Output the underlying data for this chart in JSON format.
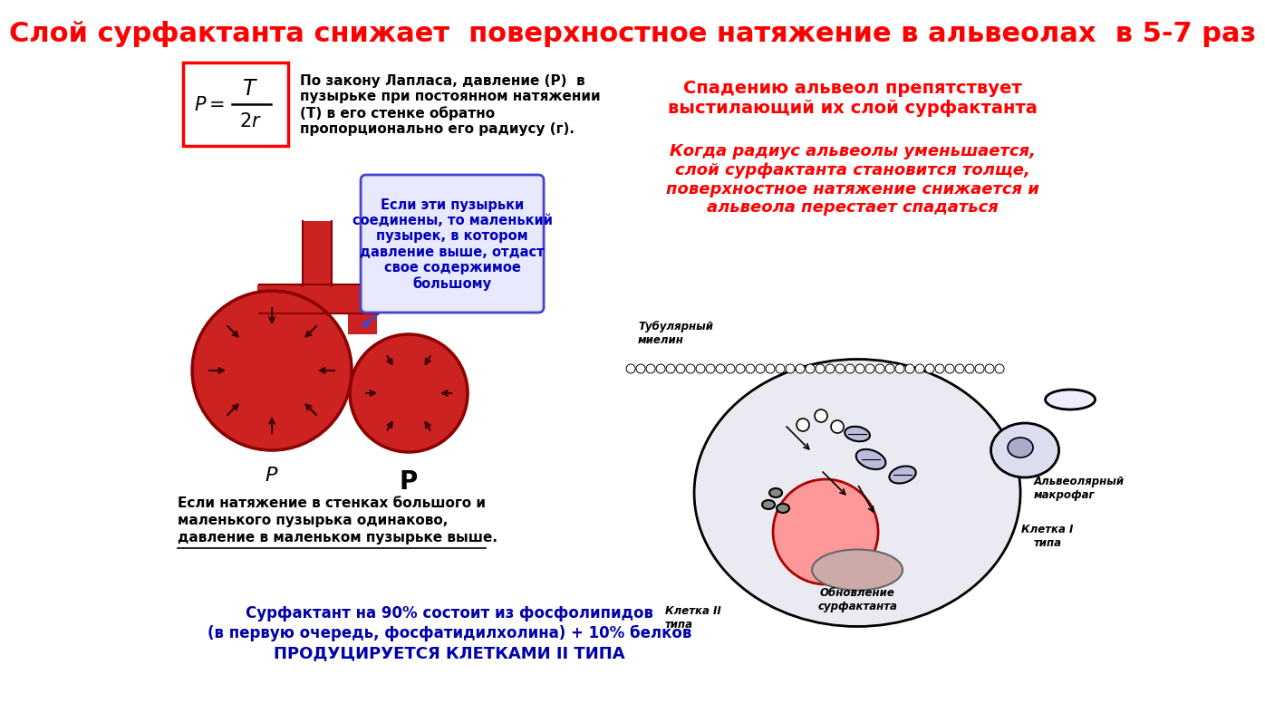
{
  "title": "Слой сурфактанта снижает  поверхностное натяжение в альвеолах  в 5-7 раз",
  "title_color": "#FF0000",
  "title_fontsize": 22,
  "bg_color": "#FFFFFF",
  "laplace_text": "По закону Лапласа, давление (Р)  в\nпузырьке при постоянном натяжении\n(Т) в его стенке обратно\nпропорционально его радиусу (г).",
  "bubble_callout": "Если эти пузырьки\nсоединены, то маленький\nпузырек, в котором\nдавление выше, отдаст\nсвое содержимое\nбольшому",
  "bottom_left_line1": "Если натяжение в стенках большого и",
  "bottom_left_line2": "маленького пузырька одинаково,",
  "bottom_left_line3": "давление в маленьком пузырьке выше.",
  "right_top_text1": "Спадению альвеол препятствует\nвыстилающий их слой сурфактанта",
  "right_top_text2": "Когда радиус альвеолы уменьшается,\nслой сурфактанта становится толще,\nповерхностное натяжение снижается и\nальвеола перестает спадаться",
  "bottom_center_line1": "Сурфактант на 90% состоит из фосфолипидов",
  "bottom_center_line2": "(в первую очередь, фосфатидилхолина) + 10% белков",
  "bottom_center_line3": "ПРОДУЦИРУЕТСЯ КЛЕТКАМИ II ТИПА",
  "tubular_myelin": "Тубулярный\nмиелин",
  "cell_type2": "Клетка II\nтипа",
  "cell_type1": "Клетка I\nтипа",
  "macrophage": "Альвеолярный\nмакрофаг",
  "surfactant_renewal": "Обновление\nсурфактанта"
}
